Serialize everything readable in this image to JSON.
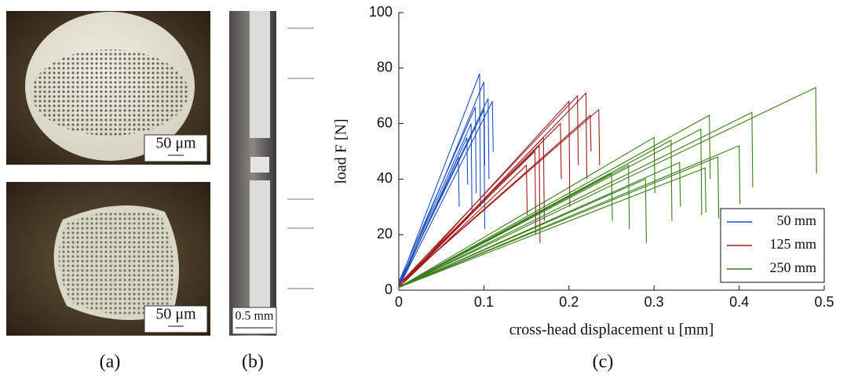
{
  "panels": {
    "a": {
      "caption": "(a)",
      "scale_top": "50 μm",
      "scale_bottom": "50 μm"
    },
    "b": {
      "caption": "(b)",
      "scale": "0.5 mm"
    },
    "c": {
      "caption": "(c)"
    }
  },
  "chart_data": {
    "type": "line",
    "xlabel": "cross-head displacement u [mm]",
    "ylabel": "load F [N]",
    "xlim": [
      0,
      0.5
    ],
    "ylim": [
      0,
      100
    ],
    "xticks": [
      0,
      0.1,
      0.2,
      0.3,
      0.4,
      0.5
    ],
    "yticks": [
      0,
      20,
      40,
      60,
      80,
      100
    ],
    "legend": "lower right",
    "series": [
      {
        "name": "50 mm",
        "color": "#1f4fbf",
        "curves": [
          {
            "x": [
              0,
              0.095,
              0.096
            ],
            "values": [
              2,
              78,
              30
            ]
          },
          {
            "x": [
              0,
              0.1,
              0.101
            ],
            "values": [
              1,
              75,
              45
            ]
          },
          {
            "x": [
              0,
              0.105,
              0.106
            ],
            "values": [
              2,
              69,
              40
            ]
          },
          {
            "x": [
              0,
              0.11,
              0.111
            ],
            "values": [
              1,
              68,
              50
            ]
          },
          {
            "x": [
              0,
              0.09,
              0.091
            ],
            "values": [
              3,
              66,
              35
            ]
          },
          {
            "x": [
              0,
              0.085,
              0.086
            ],
            "values": [
              2,
              60,
              28
            ]
          },
          {
            "x": [
              0,
              0.08,
              0.081
            ],
            "values": [
              1,
              55,
              38
            ]
          },
          {
            "x": [
              0,
              0.1,
              0.101
            ],
            "values": [
              2,
              65,
              22
            ]
          },
          {
            "x": [
              0,
              0.07,
              0.071
            ],
            "values": [
              1,
              48,
              30
            ]
          }
        ]
      },
      {
        "name": "125 mm",
        "color": "#a01c1c",
        "curves": [
          {
            "x": [
              0,
              0.21,
              0.211
            ],
            "values": [
              2,
              70,
              45
            ]
          },
          {
            "x": [
              0,
              0.22,
              0.221
            ],
            "values": [
              1,
              71,
              40
            ]
          },
          {
            "x": [
              0,
              0.235,
              0.236
            ],
            "values": [
              2,
              65,
              45
            ]
          },
          {
            "x": [
              0,
              0.2,
              0.201
            ],
            "values": [
              1,
              68,
              30
            ]
          },
          {
            "x": [
              0,
              0.19,
              0.191
            ],
            "values": [
              2,
              60,
              40
            ]
          },
          {
            "x": [
              0,
              0.17,
              0.171
            ],
            "values": [
              1,
              55,
              25
            ]
          },
          {
            "x": [
              0,
              0.16,
              0.161
            ],
            "values": [
              2,
              50,
              20
            ]
          },
          {
            "x": [
              0,
              0.15,
              0.151
            ],
            "values": [
              1,
              45,
              27
            ]
          },
          {
            "x": [
              0,
              0.225,
              0.226
            ],
            "values": [
              2,
              63,
              50
            ]
          },
          {
            "x": [
              0,
              0.165,
              0.166
            ],
            "values": [
              1,
              52,
              17
            ]
          }
        ]
      },
      {
        "name": "250 mm",
        "color": "#3a7d1a",
        "curves": [
          {
            "x": [
              0,
              0.49,
              0.491
            ],
            "values": [
              1,
              73,
              42
            ]
          },
          {
            "x": [
              0,
              0.415,
              0.416
            ],
            "values": [
              1,
              64,
              37
            ]
          },
          {
            "x": [
              0,
              0.365,
              0.366
            ],
            "values": [
              1,
              63,
              40
            ]
          },
          {
            "x": [
              0,
              0.355,
              0.356
            ],
            "values": [
              1,
              58,
              27
            ]
          },
          {
            "x": [
              0,
              0.4,
              0.401
            ],
            "values": [
              1,
              52,
              31
            ]
          },
          {
            "x": [
              0,
              0.32,
              0.321
            ],
            "values": [
              1,
              54,
              25
            ]
          },
          {
            "x": [
              0,
              0.3,
              0.301
            ],
            "values": [
              1,
              55,
              35
            ]
          },
          {
            "x": [
              0,
              0.33,
              0.331
            ],
            "values": [
              1,
              46,
              30
            ]
          },
          {
            "x": [
              0,
              0.27,
              0.271
            ],
            "values": [
              1,
              45,
              22
            ]
          },
          {
            "x": [
              0,
              0.25,
              0.251
            ],
            "values": [
              1,
              42,
              25
            ]
          },
          {
            "x": [
              0,
              0.36,
              0.361
            ],
            "values": [
              1,
              44,
              28
            ]
          },
          {
            "x": [
              0,
              0.29,
              0.291
            ],
            "values": [
              1,
              40,
              17
            ]
          },
          {
            "x": [
              0,
              0.375,
              0.376
            ],
            "values": [
              1,
              48,
              26
            ]
          }
        ]
      }
    ]
  }
}
